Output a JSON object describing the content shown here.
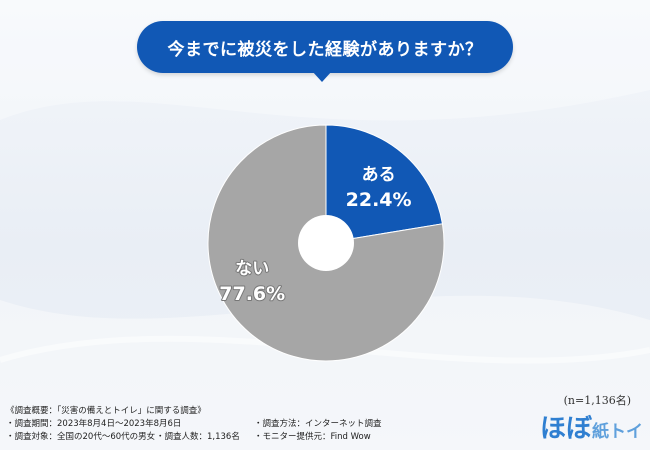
{
  "question": "今までに被災をした経験がありますか？",
  "chart_data": {
    "type": "pie",
    "donut": true,
    "categories": [
      "ある",
      "ない"
    ],
    "values": [
      22.4,
      77.6
    ],
    "value_labels": [
      "22.4%",
      "77.6%"
    ],
    "colors": [
      "#1158b5",
      "#a6a6a6"
    ]
  },
  "sample_size": "(n=1,136名)",
  "footer": {
    "title": "《調査概要：「災害の備えとトイレ」に関する調査》",
    "period": "・調査期間：2023年8月4日〜2023年8月6日",
    "method": "・調査方法：インターネット調査",
    "target": "・調査対象：全国の20代〜60代の男女",
    "count": "・調査人数：1,136名",
    "provider": "・モニター提供元：Find Wow"
  },
  "logo": {
    "main": "ほぼ",
    "sub": "紙トイレ"
  }
}
